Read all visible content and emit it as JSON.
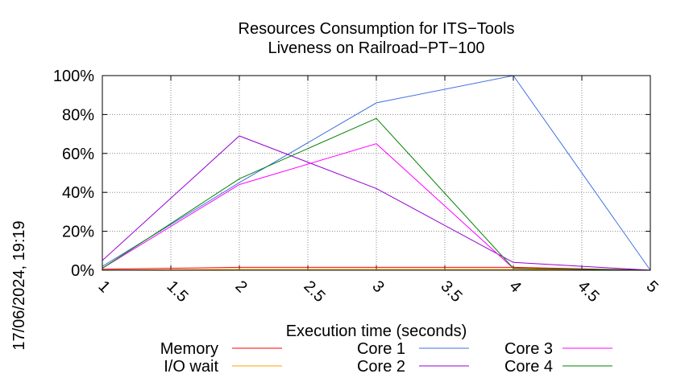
{
  "chart_data": {
    "type": "line",
    "title_lines": [
      "Resources Consumption for ITS−Tools",
      "Liveness on Railroad−PT−100"
    ],
    "xlabel": "Execution time (seconds)",
    "ylabel": "",
    "side_label": "17/06/2024, 19:19",
    "xlim": [
      1,
      5
    ],
    "ylim": [
      0,
      100
    ],
    "x_ticks": [
      "1",
      "1.5",
      "2",
      "2.5",
      "3",
      "3.5",
      "4",
      "4.5",
      "5"
    ],
    "y_ticks": [
      "0%",
      "20%",
      "40%",
      "60%",
      "80%",
      "100%"
    ],
    "grid": true,
    "legend_position": "bottom",
    "x": [
      1,
      2,
      3,
      4,
      5
    ],
    "series": [
      {
        "name": "Memory",
        "color": "#ff0000",
        "values": [
          0.5,
          1.5,
          1.5,
          1.5,
          0
        ]
      },
      {
        "name": "I/O wait",
        "color": "#ffa000",
        "values": [
          0,
          0.5,
          0.5,
          0.5,
          0
        ]
      },
      {
        "name": "Core 1",
        "color": "#4070e0",
        "values": [
          2,
          45,
          86,
          100,
          0
        ]
      },
      {
        "name": "Core 2",
        "color": "#9400d3",
        "values": [
          5,
          69,
          42,
          4,
          0
        ]
      },
      {
        "name": "Core 3",
        "color": "#ff00ff",
        "values": [
          1,
          44,
          65,
          1,
          0
        ]
      },
      {
        "name": "Core 4",
        "color": "#008000",
        "values": [
          1,
          47,
          78,
          1,
          0
        ]
      }
    ]
  }
}
